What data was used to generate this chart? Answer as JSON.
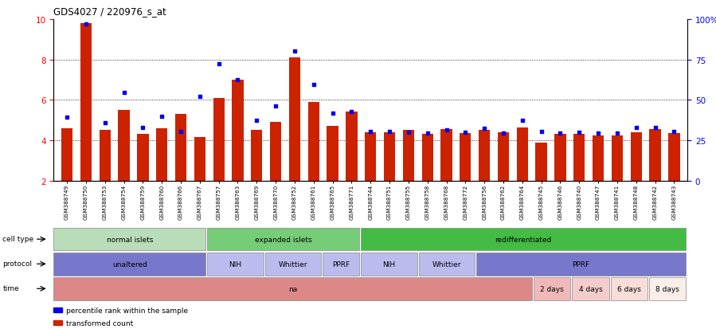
{
  "title": "GDS4027 / 220976_s_at",
  "samples": [
    "GSM388749",
    "GSM388750",
    "GSM388753",
    "GSM388754",
    "GSM388759",
    "GSM388760",
    "GSM388766",
    "GSM388767",
    "GSM388757",
    "GSM388763",
    "GSM388769",
    "GSM388770",
    "GSM388752",
    "GSM388761",
    "GSM388765",
    "GSM388771",
    "GSM388744",
    "GSM388751",
    "GSM388755",
    "GSM388758",
    "GSM388768",
    "GSM388772",
    "GSM388756",
    "GSM388762",
    "GSM388764",
    "GSM388745",
    "GSM388746",
    "GSM388740",
    "GSM388747",
    "GSM388741",
    "GSM388748",
    "GSM388742",
    "GSM388743"
  ],
  "bar_values": [
    4.6,
    9.8,
    4.5,
    5.5,
    4.3,
    4.6,
    5.3,
    4.15,
    6.1,
    7.0,
    4.5,
    4.9,
    8.1,
    5.9,
    4.7,
    5.4,
    4.4,
    4.4,
    4.5,
    4.3,
    4.55,
    4.35,
    4.5,
    4.4,
    4.65,
    3.9,
    4.3,
    4.3,
    4.25,
    4.25,
    4.4,
    4.55,
    4.35
  ],
  "percentile_values": [
    5.15,
    9.75,
    4.85,
    6.35,
    4.65,
    5.2,
    4.45,
    6.15,
    7.8,
    7.0,
    5.0,
    5.7,
    8.4,
    6.75,
    5.35,
    5.4,
    4.45,
    4.45,
    4.4,
    4.35,
    4.5,
    4.4,
    4.6,
    4.35,
    5.0,
    4.45,
    4.35,
    4.4,
    4.35,
    4.35,
    4.65,
    4.65,
    4.45
  ],
  "ylim": [
    2,
    10
  ],
  "yticks_left": [
    2,
    4,
    6,
    8,
    10
  ],
  "yticks_right_labels": [
    "0",
    "25",
    "50",
    "75",
    "100%"
  ],
  "bar_color": "#cc2200",
  "dot_color": "#0000ee",
  "cell_type_groups": [
    {
      "label": "normal islets",
      "start": 0,
      "end": 7,
      "color": "#b8ddb8"
    },
    {
      "label": "expanded islets",
      "start": 8,
      "end": 15,
      "color": "#77cc77"
    },
    {
      "label": "redifferentiated",
      "start": 16,
      "end": 32,
      "color": "#44bb44"
    }
  ],
  "protocol_groups": [
    {
      "label": "unaltered",
      "start": 0,
      "end": 7,
      "color": "#7777cc"
    },
    {
      "label": "NIH",
      "start": 8,
      "end": 10,
      "color": "#bbbbee"
    },
    {
      "label": "Whittier",
      "start": 11,
      "end": 13,
      "color": "#bbbbee"
    },
    {
      "label": "PPRF",
      "start": 14,
      "end": 15,
      "color": "#bbbbee"
    },
    {
      "label": "NIH",
      "start": 16,
      "end": 18,
      "color": "#bbbbee"
    },
    {
      "label": "Whittier",
      "start": 19,
      "end": 21,
      "color": "#bbbbee"
    },
    {
      "label": "PPRF",
      "start": 22,
      "end": 32,
      "color": "#7777cc"
    }
  ],
  "time_groups": [
    {
      "label": "na",
      "start": 0,
      "end": 24,
      "color": "#dd8888"
    },
    {
      "label": "2 days",
      "start": 25,
      "end": 26,
      "color": "#f0b8b8"
    },
    {
      "label": "4 days",
      "start": 27,
      "end": 28,
      "color": "#f5cccc"
    },
    {
      "label": "6 days",
      "start": 29,
      "end": 30,
      "color": "#f8ddd8"
    },
    {
      "label": "8 days",
      "start": 31,
      "end": 32,
      "color": "#faeee8"
    }
  ],
  "legend_items": [
    {
      "label": "transformed count",
      "color": "#cc2200",
      "marker": "s"
    },
    {
      "label": "percentile rank within the sample",
      "color": "#0000ee",
      "marker": "s"
    }
  ]
}
